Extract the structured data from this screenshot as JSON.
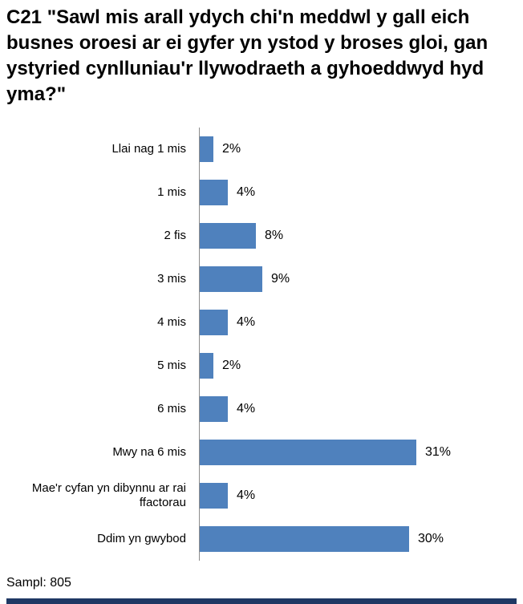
{
  "title": "C21 \"Sawl mis arall ydych chi'n meddwl y gall eich busnes oroesi ar ei gyfer yn ystod y broses gloi, gan ystyried cynlluniau'r llywodraeth a gyhoeddwyd hyd yma?\"",
  "sample_note": "Sampl: 805",
  "colors": {
    "bar": "#4F81BD",
    "axis": "#8C8C8C",
    "footer_strip": "#1F3864",
    "text": "#000000"
  },
  "chart_data": {
    "type": "bar",
    "orientation": "horizontal",
    "title": "C21 \"Sawl mis arall ydych chi'n meddwl y gall eich busnes oroesi ar ei gyfer yn ystod y broses gloi, gan ystyried cynlluniau'r llywodraeth a gyhoeddwyd hyd yma?\"",
    "categories": [
      "Llai nag 1 mis",
      "1 mis",
      "2 fis",
      "3 mis",
      "4 mis",
      "5 mis",
      "6 mis",
      "Mwy na 6 mis",
      "Mae'r cyfan yn dibynnu ar rai ffactorau",
      "Ddim yn gwybod"
    ],
    "values": [
      2,
      4,
      8,
      9,
      4,
      2,
      4,
      31,
      4,
      30
    ],
    "value_labels": [
      "2%",
      "4%",
      "8%",
      "9%",
      "4%",
      "2%",
      "4%",
      "31%",
      "4%",
      "30%"
    ],
    "xlabel": "",
    "ylabel": "",
    "xlim": [
      0,
      35
    ],
    "grid": false,
    "legend": false,
    "data_labels": "outside-end",
    "sample_size": 805
  }
}
